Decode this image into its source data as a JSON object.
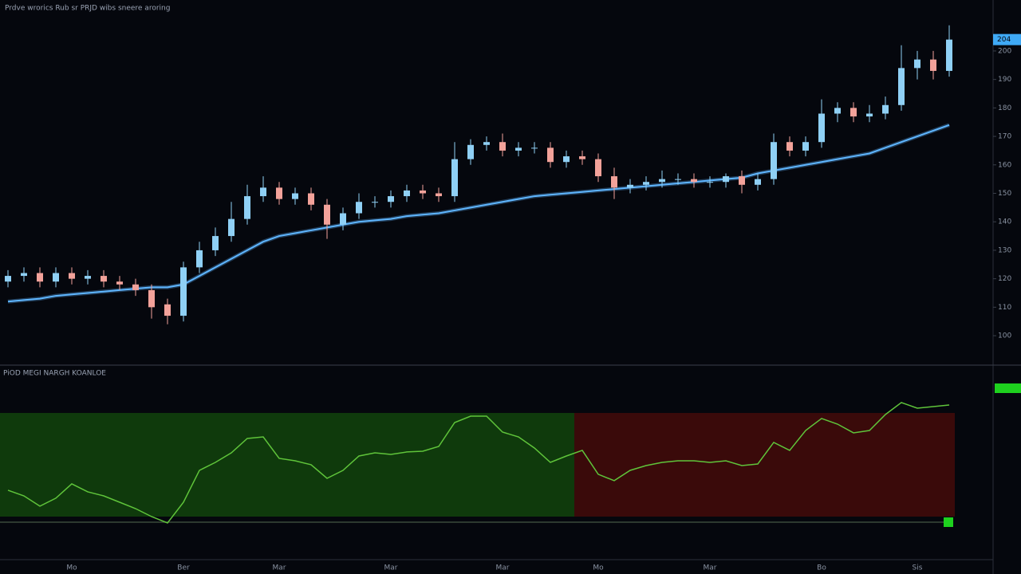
{
  "chart_data": [
    {
      "type": "candlestick",
      "title": "Prdve wrorics  Rub sr  PRJD  wibs  sneere aroring",
      "categories": [
        null,
        null,
        null,
        null,
        "Mo",
        null,
        null,
        null,
        null,
        null,
        null,
        "Ber",
        null,
        null,
        null,
        null,
        null,
        "Mar",
        null,
        null,
        null,
        null,
        null,
        null,
        "Mar",
        null,
        null,
        null,
        null,
        null,
        null,
        "Mar",
        null,
        null,
        null,
        null,
        null,
        "Mo",
        null,
        null,
        null,
        null,
        null,
        null,
        "Mar",
        null,
        null,
        null,
        null,
        null,
        null,
        "Bo",
        null,
        null,
        null,
        null,
        null,
        "Sis",
        null,
        null
      ],
      "open": [
        119,
        121,
        122,
        119,
        122,
        120,
        121,
        119,
        118,
        116,
        111,
        107,
        124,
        130,
        135,
        141,
        149,
        152,
        148,
        150,
        146,
        139,
        143,
        147,
        147,
        149,
        151,
        150,
        149,
        162,
        167,
        168,
        165,
        166,
        166,
        161,
        163,
        162,
        156,
        152,
        153,
        154,
        155,
        155,
        154,
        154,
        156,
        153,
        155,
        168,
        165,
        168,
        178,
        180,
        177,
        178,
        181,
        194,
        197,
        193
      ],
      "high": [
        123,
        124,
        124,
        124,
        124,
        123,
        123,
        121,
        120,
        118,
        113,
        126,
        133,
        138,
        147,
        153,
        156,
        154,
        152,
        152,
        148,
        145,
        150,
        149,
        151,
        153,
        153,
        152,
        168,
        169,
        170,
        171,
        168,
        168,
        168,
        165,
        165,
        164,
        159,
        155,
        156,
        158,
        157,
        157,
        156,
        157,
        158,
        157,
        171,
        170,
        170,
        183,
        182,
        182,
        181,
        184,
        202,
        200,
        200,
        209
      ],
      "low": [
        117,
        119,
        117,
        117,
        118,
        118,
        117,
        116,
        114,
        106,
        104,
        105,
        122,
        128,
        133,
        139,
        147,
        146,
        146,
        144,
        134,
        137,
        141,
        145,
        145,
        147,
        148,
        147,
        147,
        160,
        165,
        163,
        163,
        164,
        159,
        159,
        160,
        154,
        148,
        150,
        151,
        152,
        153,
        152,
        152,
        152,
        150,
        151,
        153,
        163,
        163,
        166,
        175,
        175,
        175,
        176,
        179,
        190,
        190,
        191
      ],
      "close": [
        121,
        122,
        119,
        122,
        120,
        121,
        119,
        118,
        116,
        110,
        107,
        124,
        130,
        135,
        141,
        149,
        152,
        148,
        150,
        146,
        139,
        143,
        147,
        147,
        149,
        151,
        150,
        149,
        162,
        167,
        168,
        165,
        166,
        166,
        161,
        163,
        162,
        156,
        152,
        153,
        154,
        155,
        155,
        154,
        154,
        156,
        153,
        155,
        168,
        165,
        168,
        178,
        180,
        177,
        178,
        181,
        194,
        197,
        193,
        204
      ],
      "up_color": "#8fd0f5",
      "down_color": "#f3a29a",
      "overlay": {
        "color": "#5fb6ff",
        "values": [
          112,
          112.5,
          113,
          114,
          114.5,
          115,
          115.5,
          116,
          116.5,
          117,
          117,
          118,
          121,
          124,
          127,
          130,
          133,
          135,
          136,
          137,
          138,
          139,
          140,
          140.5,
          141,
          142,
          142.5,
          143,
          144,
          145,
          146,
          147,
          148,
          149,
          149.5,
          150,
          150.5,
          151,
          151.5,
          152,
          152.5,
          153,
          153.5,
          154,
          154.5,
          155,
          155.5,
          157,
          158,
          159,
          160,
          161,
          162,
          163,
          164,
          166,
          168,
          170,
          172,
          174
        ]
      },
      "ylim": [
        90.5,
        212.3
      ],
      "yticks": [
        100,
        110,
        120,
        130,
        140,
        150,
        160,
        170,
        180,
        190,
        200
      ]
    },
    {
      "type": "line",
      "title": "PiOD MEGI NARGH KOANLOE",
      "color": "#5fc43a",
      "values": [
        23.8,
        18.5,
        8.8,
        16.3,
        29.8,
        22.3,
        18.5,
        12.5,
        6.5,
        -1,
        -7,
        12.5,
        42.5,
        50,
        59,
        72.5,
        74,
        53.8,
        51.5,
        47.8,
        35,
        42.5,
        56,
        59,
        57.5,
        59.8,
        60.5,
        65,
        87.5,
        93.5,
        93.5,
        78.5,
        74,
        63.5,
        50,
        56,
        61.3,
        38.8,
        32.8,
        42.5,
        47,
        50,
        51.5,
        51.5,
        50,
        51.5,
        47,
        48.5,
        68.8,
        61.3,
        80,
        91.3,
        86,
        77.8,
        80,
        95,
        106.3,
        101,
        102.5,
        104
      ],
      "ylim": [
        -10,
        110
      ]
    }
  ]
}
